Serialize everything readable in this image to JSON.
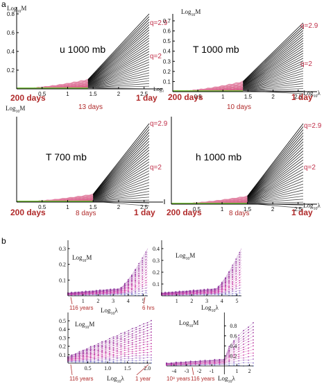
{
  "panel_labels": [
    "a",
    "b"
  ],
  "chart_data": [
    {
      "type": "line",
      "panel": "a",
      "title": "u 1000 mb",
      "ylabel": "Log10M",
      "xlabel": "Log10λ",
      "xlabel_display": "Log₁",
      "x_ticks": [
        "0.5",
        "1",
        "1.5",
        "2",
        "2.5"
      ],
      "y_ticks": [
        "0.2",
        "0.4",
        "0.6",
        "0.8"
      ],
      "xlim": [
        0,
        2.6
      ],
      "ylim": [
        0,
        0.8
      ],
      "grid": false,
      "q_labels": [
        "q=2.9",
        "q=2"
      ],
      "bottom_labels": [
        "200 days",
        "13 days",
        "1 day"
      ],
      "break_x": 1.4,
      "q_range": [
        0.1,
        2.9
      ],
      "series_count": 29,
      "series_ends": {
        "x": 2.6,
        "y_min": 0.0,
        "y_max": 0.8
      },
      "colors": {
        "steep": "#000000",
        "shallow": "#d45580",
        "low": "#6cb5e0",
        "floor": "#7cc242"
      }
    },
    {
      "type": "line",
      "panel": "a",
      "title": "T 1000 mb",
      "ylabel": "Log10M",
      "xlabel": "Log10λ",
      "x_ticks": [
        "0.5",
        "1",
        "1.5",
        "2",
        "2.5"
      ],
      "y_ticks": [
        "0.1",
        "0.2",
        "0.3",
        "0.4",
        "0.5",
        "0.6",
        "0.7"
      ],
      "xlim": [
        0,
        2.6
      ],
      "ylim": [
        0,
        0.7
      ],
      "grid": false,
      "q_labels": [
        "q=2.9",
        "q=2"
      ],
      "bottom_labels": [
        "200 days",
        "10 days",
        "1 day"
      ],
      "break_x": 1.4,
      "q_range": [
        0.1,
        2.9
      ],
      "series_count": 29,
      "series_ends": {
        "x": 2.6,
        "y_min": -0.02,
        "y_max": 0.68
      },
      "colors": {
        "steep": "#000000",
        "shallow": "#d45580",
        "low": "#6cb5e0",
        "floor": "#7cc242"
      }
    },
    {
      "type": "line",
      "panel": "a",
      "title": "T 700 mb",
      "ylabel": "Log10M",
      "xlabel": "",
      "x_ticks": [
        "0.5",
        "1",
        "1.5",
        "2",
        "2.5"
      ],
      "y_ticks": [],
      "xlim": [
        0,
        2.6
      ],
      "ylim": [
        0,
        1.0
      ],
      "grid": false,
      "q_labels": [
        "q=2.9",
        "q=2"
      ],
      "bottom_labels": [
        "200 days",
        "8 days",
        "1 day"
      ],
      "break_x": 1.5,
      "q_range": [
        0.1,
        2.9
      ],
      "series_count": 29,
      "series_ends": {
        "x": 2.6,
        "y_min": -0.05,
        "y_max": 1.0
      },
      "colors": {
        "steep": "#000000",
        "shallow": "#d45580",
        "low": "#6cb5e0",
        "floor": "#7cc242"
      }
    },
    {
      "type": "line",
      "panel": "a",
      "title": "h 1000 mb",
      "ylabel": "",
      "xlabel": "Log10λ",
      "x_ticks": [
        "0.5",
        "1",
        "1.5",
        "2",
        "2.5"
      ],
      "y_ticks": [],
      "xlim": [
        0,
        2.6
      ],
      "ylim": [
        0,
        1.0
      ],
      "grid": false,
      "q_labels": [
        "q=2.9",
        "q=2"
      ],
      "bottom_labels": [
        "200 days",
        "8 days",
        "1 day"
      ],
      "break_x": 1.5,
      "q_range": [
        0.1,
        2.9
      ],
      "series_count": 29,
      "series_ends": {
        "x": 2.6,
        "y_min": -0.05,
        "y_max": 1.0
      },
      "colors": {
        "steep": "#000000",
        "shallow": "#d45580",
        "low": "#6cb5e0",
        "floor": "#7cc242"
      }
    },
    {
      "type": "scatter",
      "panel": "b",
      "ylabel": "Log10M",
      "xlabel": "Log10λ",
      "x_ticks": [
        "1",
        "2",
        "3",
        "4",
        "5"
      ],
      "y_ticks": [
        "0.1",
        "0.2",
        "0.3"
      ],
      "xlim": [
        0,
        5.3
      ],
      "ylim": [
        0,
        0.3
      ],
      "grid": false,
      "bottom_labels": [
        "116 years",
        "6 hrs"
      ],
      "break_x": 3.4,
      "series_count": 18,
      "points_per_series": 45,
      "colors": {
        "steep": "#8a2f9a",
        "shallow": "#d43fa8",
        "low": "#7a8fd8"
      }
    },
    {
      "type": "scatter",
      "panel": "b",
      "ylabel": "Log10M",
      "xlabel": "Log10λ",
      "x_ticks": [
        "1",
        "2",
        "3",
        "4",
        "5"
      ],
      "y_ticks": [
        "0.1",
        "0.2",
        "0.3",
        "0.4"
      ],
      "xlim": [
        0,
        5.3
      ],
      "ylim": [
        0,
        0.4
      ],
      "grid": false,
      "bottom_labels": [],
      "break_x": 3.6,
      "series_count": 18,
      "points_per_series": 45,
      "colors": {
        "steep": "#8a2f9a",
        "shallow": "#d43fa8",
        "low": "#7a8fd8"
      }
    },
    {
      "type": "scatter",
      "panel": "b",
      "ylabel": "Log10M",
      "xlabel": "Log10λ",
      "x_ticks": [
        "0.5",
        "1.0",
        "1.5",
        "2.0"
      ],
      "y_ticks": [
        "0.1",
        "0.2",
        "0.3",
        "0.4",
        "0.5"
      ],
      "xlim": [
        0,
        2.1
      ],
      "ylim": [
        0,
        0.5
      ],
      "grid": false,
      "bottom_labels": [
        "116 years",
        "1 year"
      ],
      "series_count": 16,
      "points_per_series": 22,
      "colors": {
        "steep": "#8a2f9a",
        "shallow": "#d43fa8",
        "low": "#7a8fd8"
      }
    },
    {
      "type": "scatter",
      "panel": "b",
      "ylabel": "Log10M",
      "xlabel": "Log10λ",
      "x_ticks": [
        "-4",
        "-3",
        "-2",
        "-1",
        "1",
        "2"
      ],
      "y_ticks": [
        "0.2",
        "0.4",
        "0.6",
        "0.8"
      ],
      "xlim": [
        -4.6,
        2.3
      ],
      "ylim": [
        0,
        0.9
      ],
      "grid": false,
      "bottom_labels": [
        "10⁸ years",
        "116 years"
      ],
      "break_x": 0,
      "series_count": 14,
      "points_per_series": 18,
      "colors": {
        "steep": "#8a2f9a",
        "shallow": "#d43fa8",
        "low": "#7a8fd8"
      }
    }
  ]
}
